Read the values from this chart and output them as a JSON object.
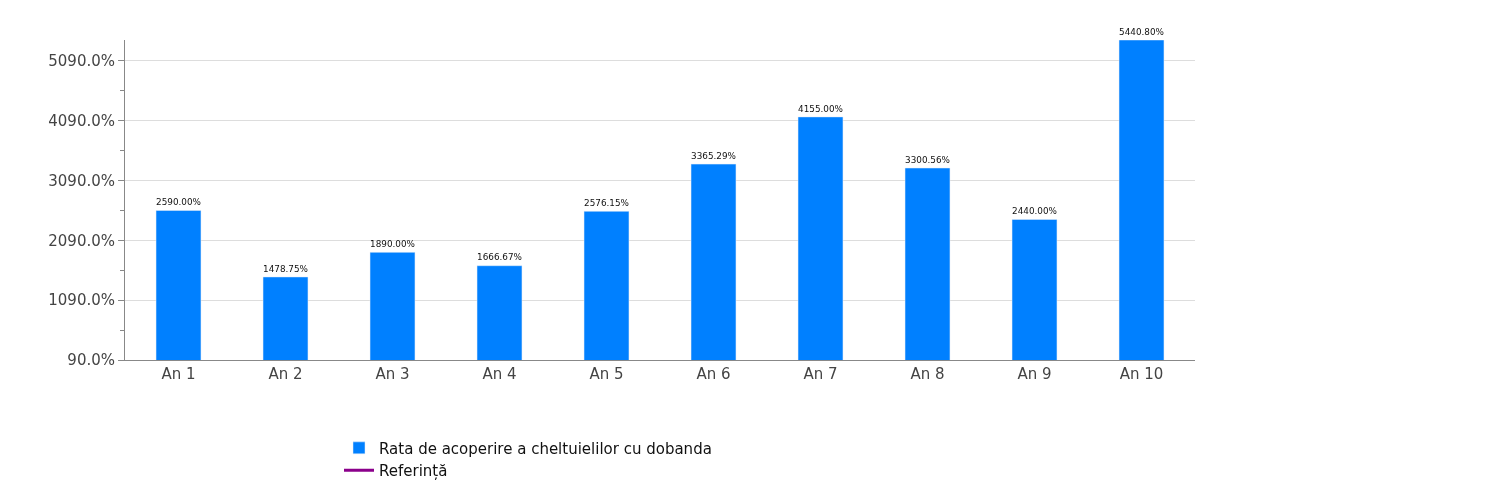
{
  "chart_data": {
    "type": "bar",
    "categories": [
      "An 1",
      "An 2",
      "An 3",
      "An 4",
      "An 5",
      "An 6",
      "An 7",
      "An 8",
      "An 9",
      "An 10"
    ],
    "series": [
      {
        "name": "Rata de acoperire a cheltuielilor cu dobanda",
        "color": "#0080ff",
        "values": [
          2590.0,
          1478.75,
          1890.0,
          1666.67,
          2576.15,
          3365.29,
          4155.0,
          3300.56,
          2440.0,
          5440.8
        ],
        "value_labels": [
          "2590.00%",
          "1478.75%",
          "1890.00%",
          "1666.67%",
          "2576.15%",
          "3365.29%",
          "4155.00%",
          "3300.56%",
          "2440.00%",
          "5440.80%"
        ]
      },
      {
        "name": "Referință",
        "type": "line",
        "color": "#8b008b",
        "values": [
          null,
          null,
          null,
          null,
          null,
          null,
          null,
          null,
          null,
          null
        ]
      }
    ],
    "ylim": [
      90,
      5440.8
    ],
    "yticks": [
      {
        "value": 90,
        "label": "90.0%"
      },
      {
        "value": 1090,
        "label": "1090.0%"
      },
      {
        "value": 2090,
        "label": "2090.0%"
      },
      {
        "value": 3090,
        "label": "3090.0%"
      },
      {
        "value": 4090,
        "label": "4090.0%"
      },
      {
        "value": 5090,
        "label": "5090.0%"
      }
    ],
    "grid": "y",
    "legend": "bottom"
  }
}
